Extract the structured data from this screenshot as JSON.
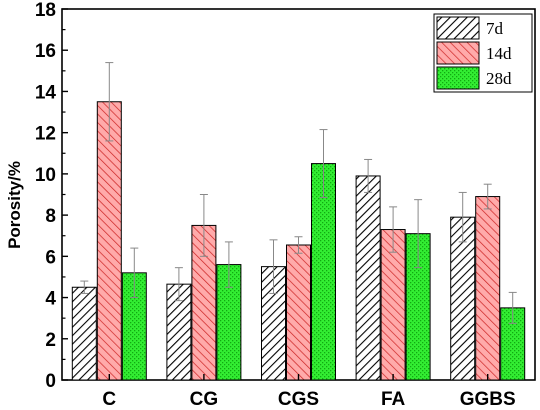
{
  "chart_data": {
    "type": "bar",
    "categories": [
      "C",
      "CG",
      "CGS",
      "FA",
      "GGBS"
    ],
    "series": [
      {
        "name": "7d",
        "values": [
          4.5,
          4.65,
          5.5,
          9.9,
          7.9
        ],
        "errors": [
          0.3,
          0.8,
          1.3,
          0.8,
          1.2
        ]
      },
      {
        "name": "14d",
        "values": [
          13.5,
          7.5,
          6.55,
          7.3,
          8.9
        ],
        "errors": [
          1.9,
          1.5,
          0.4,
          1.1,
          0.6
        ]
      },
      {
        "name": "28d",
        "values": [
          5.2,
          5.6,
          10.5,
          7.1,
          3.5
        ],
        "errors": [
          1.2,
          1.1,
          1.65,
          1.65,
          0.75
        ]
      }
    ],
    "xlabel": "",
    "ylabel": "Porosity/%",
    "ylim": [
      0,
      18
    ],
    "yticks": [
      "0",
      "2",
      "4",
      "6",
      "8",
      "10",
      "12",
      "14",
      "16",
      "18"
    ],
    "grid": false,
    "legend_position": "top-right",
    "colors": {
      "7d": {
        "fill": "#ffffff",
        "hatch": "#000000"
      },
      "14d": {
        "fill": "#ffaaaa",
        "hatch": "#cc2222"
      },
      "28d": {
        "fill": "#33ee33",
        "hatch": "#11aa11"
      },
      "error_bar": "#888888"
    }
  }
}
